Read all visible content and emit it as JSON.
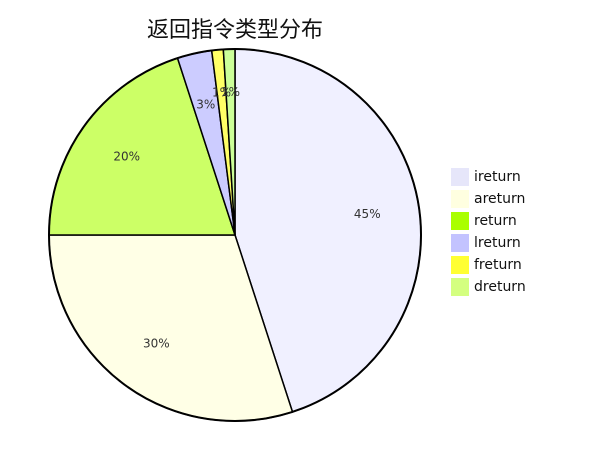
{
  "chart_data": {
    "type": "pie",
    "title": "返回指令类型分布",
    "legend_position": "right",
    "start_angle_deg": 0,
    "direction": "clockwise",
    "slices": [
      {
        "label": "ireturn",
        "value": 45,
        "percent_label": "45%",
        "color": "#f0f0ff",
        "legend_swatch": "#e6e6fa"
      },
      {
        "label": "areturn",
        "value": 30,
        "percent_label": "30%",
        "color": "#ffffe6",
        "legend_swatch": "#ffffe0"
      },
      {
        "label": "return",
        "value": 20,
        "percent_label": "20%",
        "color": "#ccff66",
        "legend_swatch": "#aaff00"
      },
      {
        "label": "lreturn",
        "value": 3,
        "percent_label": "3%",
        "color": "#ccccff",
        "legend_swatch": "#c3c3ff"
      },
      {
        "label": "freturn",
        "value": 1,
        "percent_label": "1%",
        "color": "#ffff66",
        "legend_swatch": "#ffff33"
      },
      {
        "label": "dreturn",
        "value": 1,
        "percent_label": "1%",
        "color": "#ccff99",
        "legend_swatch": "#d4ff80"
      }
    ]
  }
}
